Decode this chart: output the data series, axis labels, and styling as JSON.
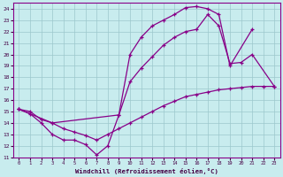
{
  "bg_color": "#c8ecee",
  "grid_color": "#9cc8cc",
  "line_color": "#880088",
  "xlabel": "Windchill (Refroidissement éolien,°C)",
  "xlim": [
    -0.5,
    23.5
  ],
  "ylim": [
    11,
    24.5
  ],
  "curve1_x": [
    0,
    1,
    2,
    3,
    4,
    5,
    6,
    7,
    8,
    9,
    10,
    11,
    12,
    13,
    14,
    15,
    16,
    17,
    18,
    19,
    21
  ],
  "curve1_y": [
    15.2,
    14.8,
    14.0,
    13.0,
    12.5,
    12.5,
    12.1,
    11.2,
    12.0,
    14.7,
    20.0,
    21.5,
    22.5,
    23.0,
    23.5,
    24.1,
    24.2,
    24.0,
    23.5,
    19.0,
    22.2
  ],
  "curve2_x": [
    0,
    1,
    2,
    3,
    4,
    5,
    6,
    7,
    8,
    9,
    10,
    11,
    12,
    13,
    14,
    15,
    16,
    17,
    18,
    19,
    20,
    21,
    22,
    23
  ],
  "curve2_y": [
    15.2,
    15.0,
    14.3,
    14.0,
    13.5,
    13.2,
    12.9,
    12.5,
    13.0,
    13.5,
    14.0,
    14.5,
    15.0,
    15.5,
    15.9,
    16.3,
    16.5,
    16.7,
    16.9,
    17.0,
    17.1,
    17.2,
    17.2,
    17.2
  ],
  "curve3_x": [
    0,
    3,
    9,
    10,
    11,
    12,
    13,
    14,
    15,
    16,
    17,
    18,
    19,
    20,
    21,
    23
  ],
  "curve3_y": [
    15.2,
    14.0,
    14.7,
    17.6,
    18.8,
    19.8,
    20.8,
    21.5,
    22.0,
    22.2,
    23.5,
    22.5,
    19.2,
    19.3,
    20.0,
    17.2
  ]
}
